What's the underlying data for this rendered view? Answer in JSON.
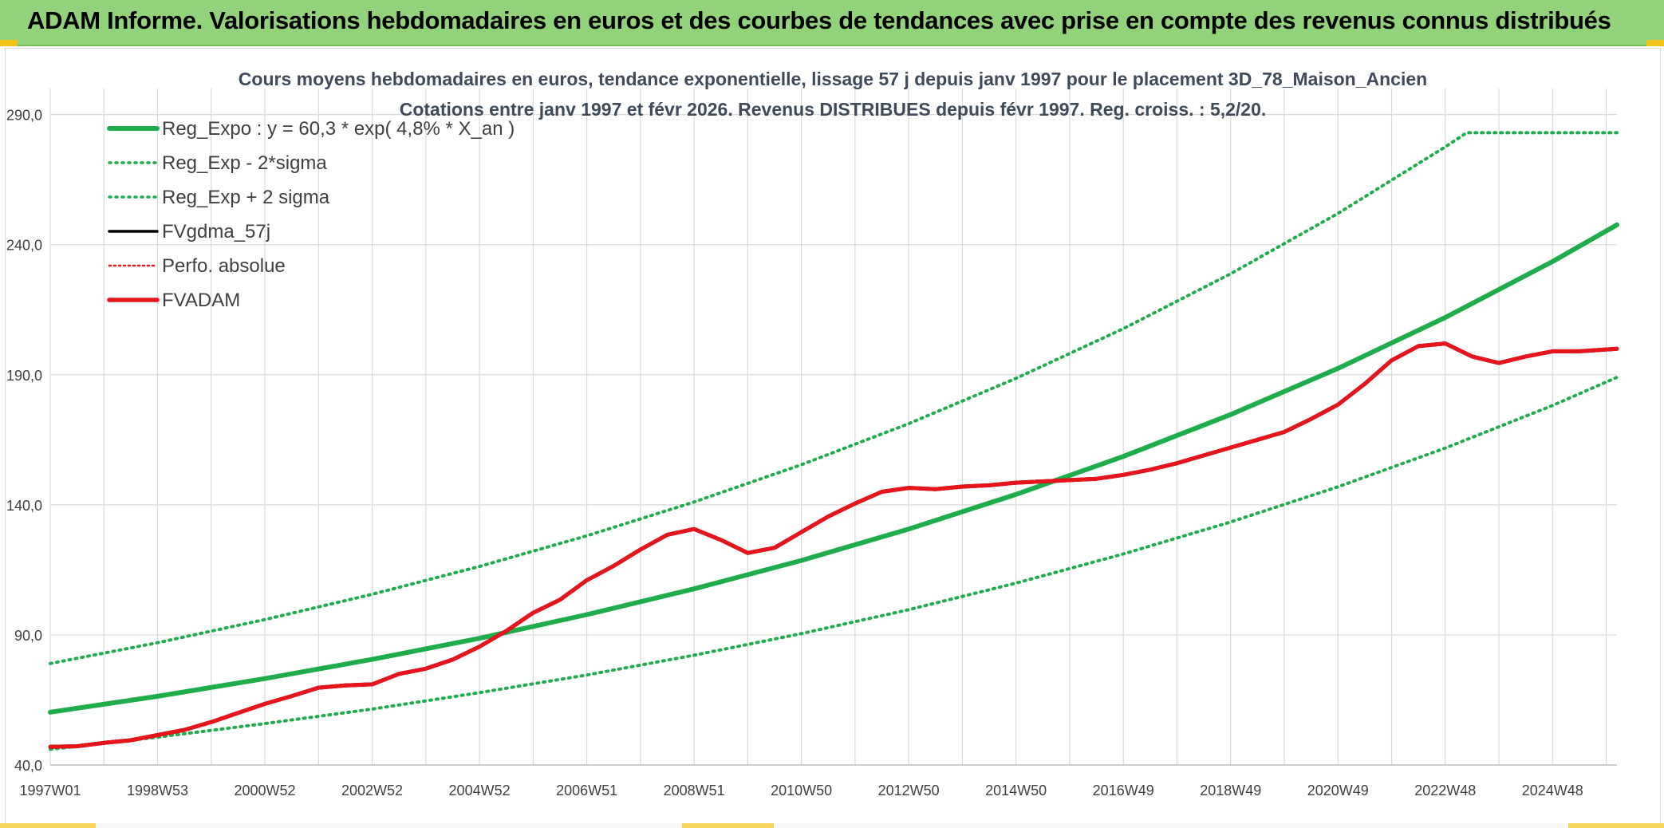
{
  "header": {
    "title": "ADAM Informe. Valorisations hebdomadaires en euros et des courbes de tendances avec prise en compte des revenus connus distribués"
  },
  "colors": {
    "header_bg": "#92d27a",
    "regression": "#1fad4b",
    "fvadam": "#e8141b",
    "fvgdma": "#000000",
    "perfo": "#e8141b",
    "grid": "#d9d9d9"
  },
  "chart_data": {
    "type": "line",
    "title": "Cours moyens hebdomadaires en euros, tendance exponentielle, lissage 57 j depuis janv 1997 pour le placement 3D_78_Maison_Ancien",
    "subtitle": "Cotations entre janv 1997 et févr 2026. Revenus DISTRIBUES depuis févr 1997. Reg. croiss. : 5,2/20.",
    "xlabel": "",
    "ylabel": "",
    "x_ticks": [
      "1997W01",
      "1998W53",
      "2000W52",
      "2002W52",
      "2004W52",
      "2006W51",
      "2008W51",
      "2010W50",
      "2012W50",
      "2014W50",
      "2016W49",
      "2018W49",
      "2020W49",
      "2022W48",
      "2024W48"
    ],
    "xlim": [
      1997.0,
      2026.2
    ],
    "ylim": [
      40,
      300
    ],
    "y_ticks": [
      "40,0",
      "90,0",
      "140,0",
      "190,0",
      "240,0",
      "290,0"
    ],
    "y_tick_values": [
      40,
      90,
      140,
      190,
      240,
      290
    ],
    "grid": true,
    "legend_position": "top-left",
    "legend": [
      {
        "label": "Reg_Expo : y = 60,3 * exp( 4,8% *  X_an )",
        "style": "solid-thick",
        "color": "#1fad4b"
      },
      {
        "label": "Reg_Exp - 2*sigma",
        "style": "dotted",
        "color": "#1fad4b"
      },
      {
        "label": "Reg_Exp + 2 sigma",
        "style": "dotted",
        "color": "#1fad4b"
      },
      {
        "label": "FVgdma_57j",
        "style": "solid-thin",
        "color": "#000000"
      },
      {
        "label": "Perfo. absolue",
        "style": "dotted-thin",
        "color": "#e8141b"
      },
      {
        "label": "FVADAM",
        "style": "solid-thick",
        "color": "#e8141b"
      }
    ],
    "series": [
      {
        "name": "Reg_Expo : y = 60,3 * exp( 4,8% *  X_an )",
        "x": [
          1997,
          1999,
          2001,
          2003,
          2005,
          2007,
          2009,
          2011,
          2013,
          2015,
          2017,
          2019,
          2021,
          2023,
          2025,
          2026.2
        ],
        "y": [
          60.3,
          66.4,
          73.2,
          80.6,
          88.7,
          97.8,
          107.7,
          118.6,
          130.7,
          144.0,
          158.6,
          174.7,
          192.4,
          212.0,
          233.5,
          247.6
        ]
      },
      {
        "name": "Reg_Exp - 2*sigma",
        "x": [
          1997,
          1999,
          2001,
          2003,
          2005,
          2007,
          2009,
          2011,
          2013,
          2015,
          2017,
          2019,
          2021,
          2023,
          2025,
          2026.2
        ],
        "y": [
          46.0,
          50.7,
          55.9,
          61.5,
          67.8,
          74.6,
          82.2,
          90.5,
          99.7,
          109.9,
          121.1,
          133.4,
          146.9,
          161.8,
          178.2,
          189.0
        ]
      },
      {
        "name": "Reg_Exp + 2 sigma",
        "x": [
          1997,
          1999,
          2001,
          2003,
          2005,
          2007,
          2009,
          2011,
          2013,
          2015,
          2017,
          2019,
          2021,
          2023,
          2023.4,
          2026.2
        ],
        "y": [
          79.0,
          87.0,
          95.9,
          105.6,
          116.3,
          128.1,
          141.1,
          155.4,
          171.2,
          188.6,
          207.7,
          228.8,
          252.0,
          277.6,
          283.0,
          283.0
        ]
      },
      {
        "name": "FVgdma_57j",
        "x": [
          1997,
          1997.5,
          1998,
          1998.5,
          1999,
          1999.5,
          2000,
          2000.5,
          2001,
          2001.5,
          2002,
          2002.5,
          2003,
          2003.5,
          2004,
          2004.5,
          2005,
          2005.5,
          2006,
          2006.5,
          2007,
          2007.5,
          2008,
          2008.5,
          2009,
          2009.5,
          2010,
          2010.5,
          2011,
          2011.5,
          2012,
          2012.5,
          2013,
          2013.5,
          2014,
          2014.5,
          2015,
          2015.5,
          2016,
          2016.5,
          2017,
          2017.5,
          2018,
          2018.5,
          2019,
          2019.5,
          2020,
          2020.5,
          2021,
          2021.5,
          2022,
          2022.5,
          2023,
          2023.5,
          2024,
          2024.5,
          2025,
          2025.5,
          2026.2
        ],
        "y": [
          47.0,
          47.2,
          48.5,
          49.5,
          51.5,
          53.5,
          56.5,
          60.0,
          63.5,
          66.5,
          69.7,
          70.6,
          71.0,
          75.0,
          77.0,
          80.5,
          85.5,
          91.5,
          98.5,
          103.5,
          111.0,
          116.5,
          122.8,
          128.5,
          130.7,
          126.5,
          121.5,
          123.5,
          129.5,
          135.5,
          140.5,
          145.0,
          146.5,
          146.0,
          147.0,
          147.5,
          148.5,
          149.0,
          149.5,
          150.0,
          151.5,
          153.5,
          156.0,
          159.0,
          162.0,
          165.0,
          168.0,
          173.0,
          178.5,
          186.5,
          195.5,
          201.0,
          202.0,
          197.0,
          194.5,
          197.0,
          199.0,
          199.0,
          200.0
        ]
      },
      {
        "name": "FVADAM",
        "x": [
          1997,
          1997.5,
          1998,
          1998.5,
          1999,
          1999.5,
          2000,
          2000.5,
          2001,
          2001.5,
          2002,
          2002.5,
          2003,
          2003.5,
          2004,
          2004.5,
          2005,
          2005.5,
          2006,
          2006.5,
          2007,
          2007.5,
          2008,
          2008.5,
          2009,
          2009.5,
          2010,
          2010.5,
          2011,
          2011.5,
          2012,
          2012.5,
          2013,
          2013.5,
          2014,
          2014.5,
          2015,
          2015.5,
          2016,
          2016.5,
          2017,
          2017.5,
          2018,
          2018.5,
          2019,
          2019.5,
          2020,
          2020.5,
          2021,
          2021.5,
          2022,
          2022.5,
          2023,
          2023.5,
          2024,
          2024.5,
          2025,
          2025.5,
          2026.2
        ],
        "y": [
          47.0,
          47.2,
          48.5,
          49.5,
          51.5,
          53.5,
          56.5,
          60.0,
          63.5,
          66.5,
          69.7,
          70.6,
          71.0,
          75.0,
          77.0,
          80.5,
          85.5,
          91.5,
          98.5,
          103.5,
          111.0,
          116.5,
          122.8,
          128.5,
          130.7,
          126.5,
          121.5,
          123.5,
          129.5,
          135.5,
          140.5,
          145.0,
          146.5,
          146.0,
          147.0,
          147.5,
          148.5,
          149.0,
          149.5,
          150.0,
          151.5,
          153.5,
          156.0,
          159.0,
          162.0,
          165.0,
          168.0,
          173.0,
          178.5,
          186.5,
          195.5,
          201.0,
          202.0,
          197.0,
          194.5,
          197.0,
          199.0,
          199.0,
          200.0
        ]
      }
    ]
  }
}
